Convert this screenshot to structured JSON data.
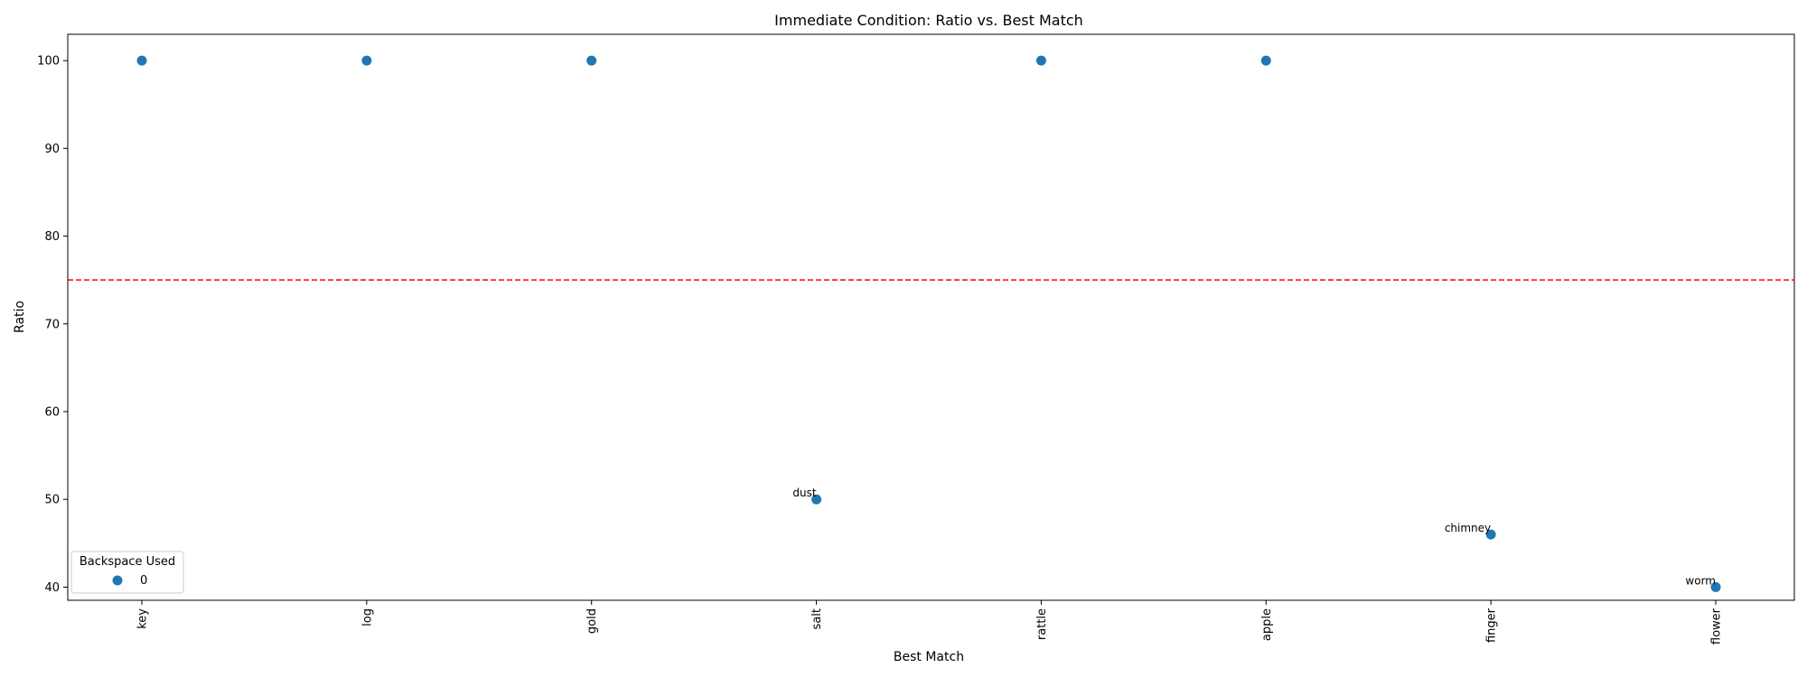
{
  "chart_data": {
    "type": "scatter",
    "title": "Immediate Condition: Ratio vs. Best Match",
    "xlabel": "Best Match",
    "ylabel": "Ratio",
    "categories": [
      "key",
      "log",
      "gold",
      "salt",
      "rattle",
      "apple",
      "finger",
      "flower"
    ],
    "series": [
      {
        "name": "0",
        "color": "#1f77b4",
        "values": [
          100,
          100,
          100,
          50,
          100,
          100,
          46,
          40
        ]
      }
    ],
    "annotations": [
      {
        "category": "salt",
        "y": 50,
        "text": "dust"
      },
      {
        "category": "finger",
        "y": 46,
        "text": "chimney"
      },
      {
        "category": "flower",
        "y": 40,
        "text": "worm"
      }
    ],
    "threshold": {
      "y": 75,
      "color": "#ff0000",
      "style": "dashed"
    },
    "ylim": [
      38.5,
      103
    ],
    "yticks": [
      40,
      50,
      60,
      70,
      80,
      90,
      100
    ],
    "legend": {
      "title": "Backspace Used",
      "placement": "lower-left"
    },
    "grid": false
  }
}
